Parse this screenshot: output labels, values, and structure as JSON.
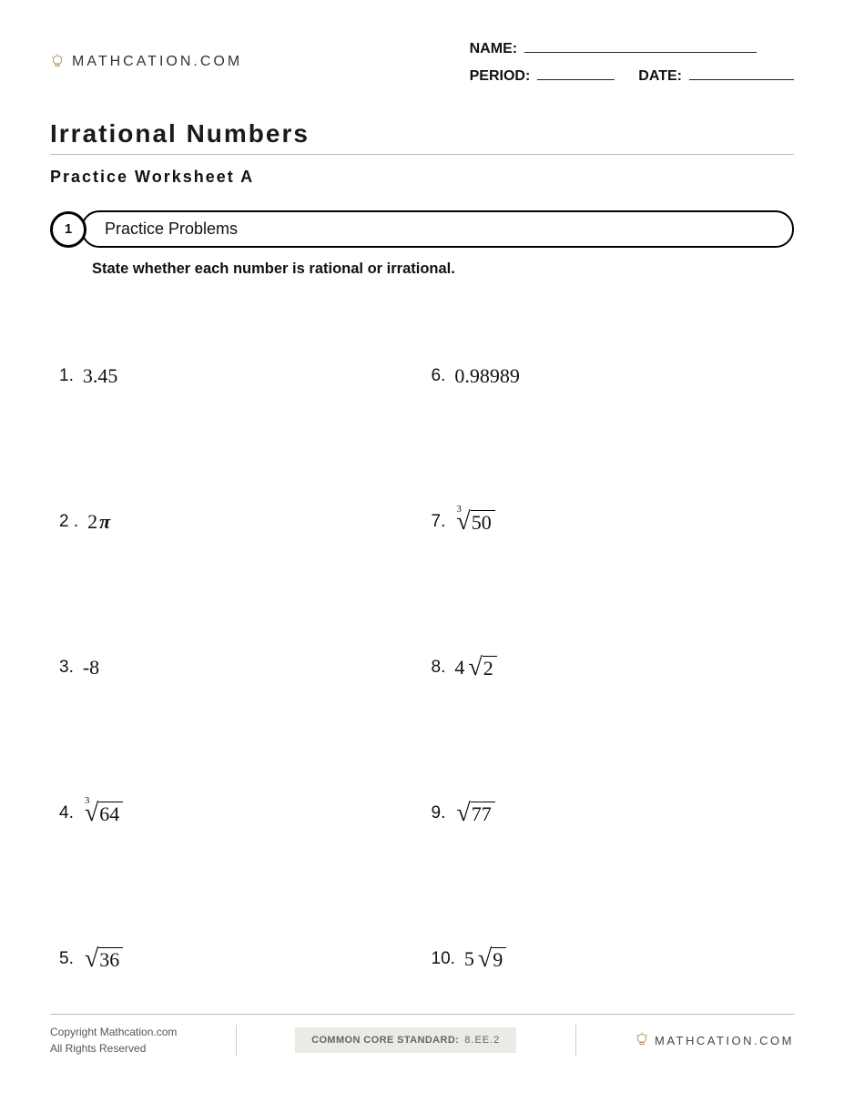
{
  "brand": "MATHCATION.COM",
  "header": {
    "name_label": "NAME:",
    "period_label": "PERIOD:",
    "date_label": "DATE:"
  },
  "title": "Irrational Numbers",
  "subtitle": "Practice Worksheet A",
  "section": {
    "number": "1",
    "label": "Practice Problems"
  },
  "instructions": "State whether each number is rational or irrational.",
  "problems": [
    {
      "n": "1.",
      "plain": "3.45"
    },
    {
      "n": "6.",
      "plain": "0.98989"
    },
    {
      "n": "2 .",
      "coeff": "2",
      "sym": "π"
    },
    {
      "n": "7.",
      "root": {
        "index": "3",
        "radicand": "50"
      }
    },
    {
      "n": "3.",
      "plain": "-8"
    },
    {
      "n": "8.",
      "coeff": "4",
      "root": {
        "radicand": "2"
      }
    },
    {
      "n": "4.",
      "root": {
        "index": "3",
        "radicand": "64"
      }
    },
    {
      "n": "9.",
      "root": {
        "radicand": "77"
      }
    },
    {
      "n": "5.",
      "root": {
        "radicand": "36"
      }
    },
    {
      "n": "10.",
      "coeff": "5",
      "root": {
        "radicand": "9"
      }
    }
  ],
  "footer": {
    "copyright_line1": "Copyright Mathcation.com",
    "copyright_line2": "All Rights Reserved",
    "standard_label": "COMMON CORE STANDARD:",
    "standard_code": "8.EE.2"
  },
  "colors": {
    "text": "#111111",
    "rule": "#bbbbbb",
    "footer_box_bg": "#eceae5",
    "footer_text": "#555555"
  }
}
